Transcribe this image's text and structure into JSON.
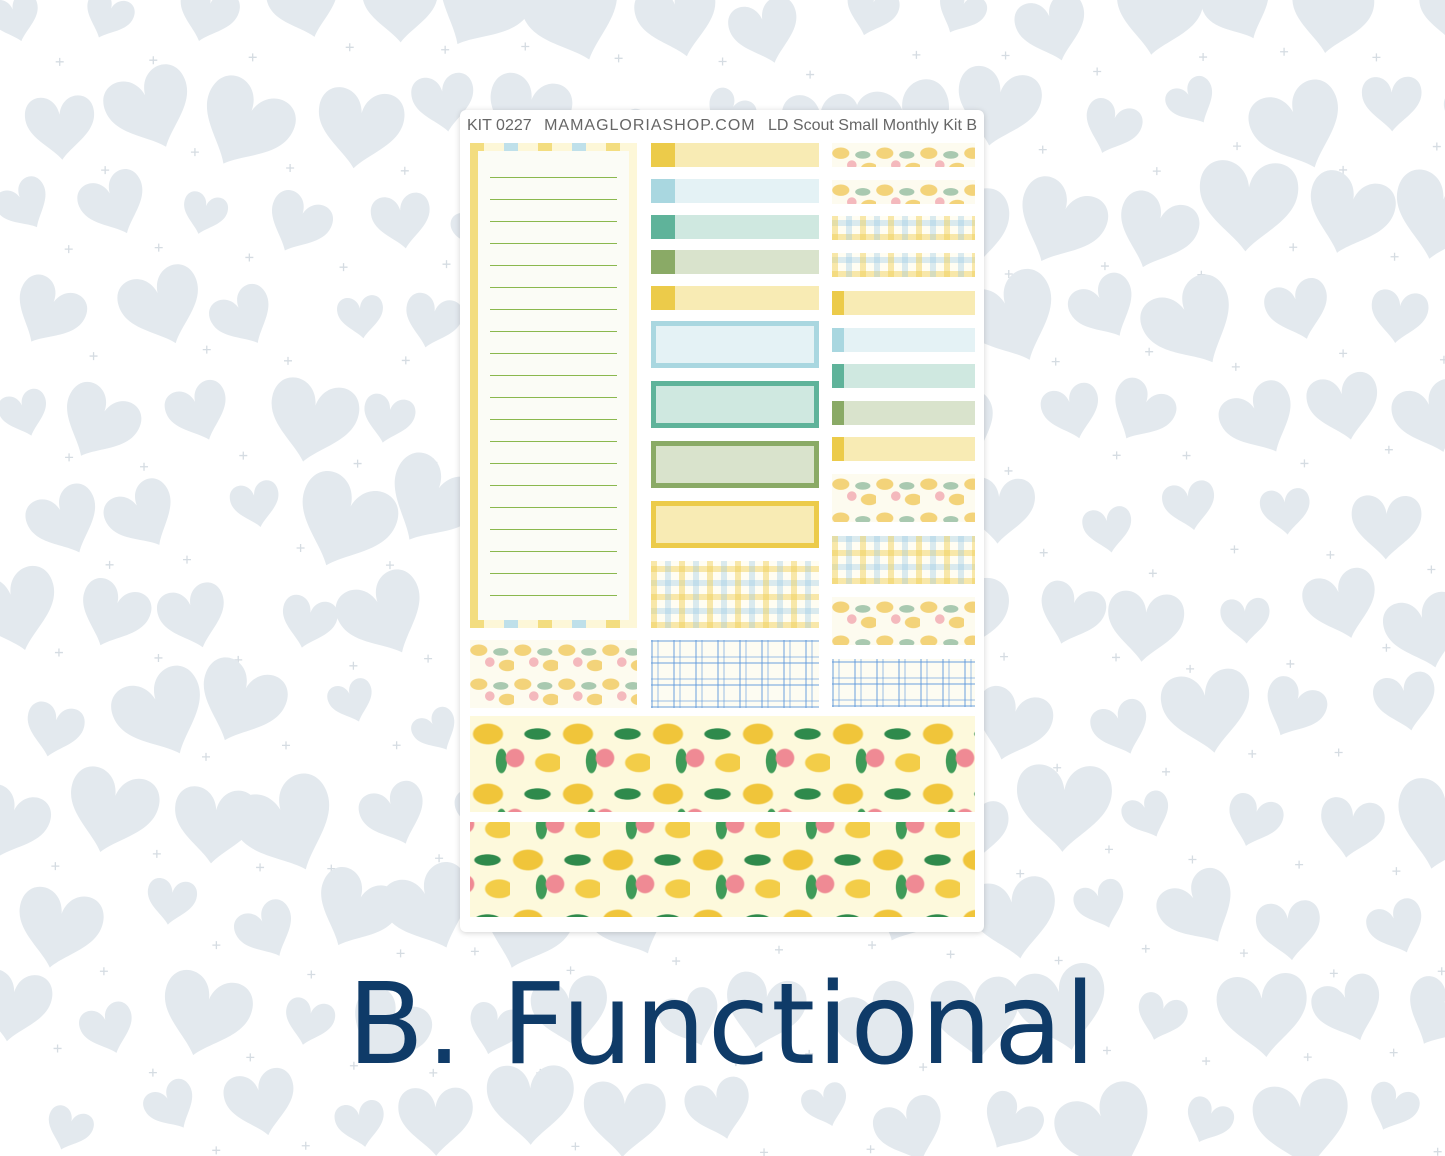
{
  "sheet": {
    "kit_number": "KIT 0227",
    "website": "MAMAGLORIASHOP.COM",
    "kit_name": "LD Scout Small Monthly Kit B"
  },
  "title": "B. Functional",
  "colors": {
    "title": "#0f3b68",
    "background_hearts": "#e3e9ee",
    "yellow": "#eccb4a",
    "blue": "#a9d7e0",
    "teal": "#5fb39a",
    "green": "#8aaa66"
  },
  "icons": [
    "heart-icon",
    "plus-sparkle-icon"
  ]
}
